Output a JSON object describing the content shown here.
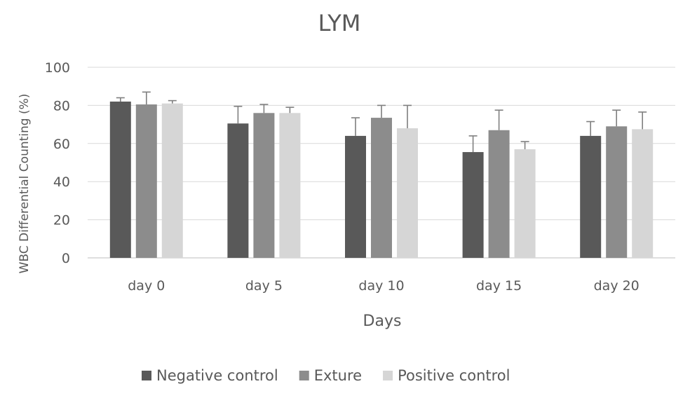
{
  "chart_data": {
    "type": "bar",
    "title": "LYM",
    "xlabel": "Days",
    "ylabel": "WBC Differential Counting (%)",
    "categories": [
      "day 0",
      "day 5",
      "day 10",
      "day 15",
      "day 20"
    ],
    "ylim": [
      0,
      100
    ],
    "yticks": [
      "0",
      "20",
      "40",
      "60",
      "80",
      "100"
    ],
    "grid": true,
    "legend_position": "bottom",
    "series": [
      {
        "name": "Negative control",
        "color": "#595959",
        "values": [
          82,
          70.5,
          64,
          55.5,
          64
        ],
        "errors": [
          2,
          9,
          9.5,
          8.5,
          7.5
        ]
      },
      {
        "name": "Exture",
        "color": "#8c8c8c",
        "values": [
          80.5,
          76,
          73.5,
          67,
          69
        ],
        "errors": [
          6.5,
          4.5,
          6.5,
          10.5,
          8.5
        ]
      },
      {
        "name": "Positive control",
        "color": "#d6d6d6",
        "values": [
          81,
          76,
          68,
          57,
          67.5
        ],
        "errors": [
          1.5,
          3,
          12,
          4,
          9
        ]
      }
    ]
  }
}
